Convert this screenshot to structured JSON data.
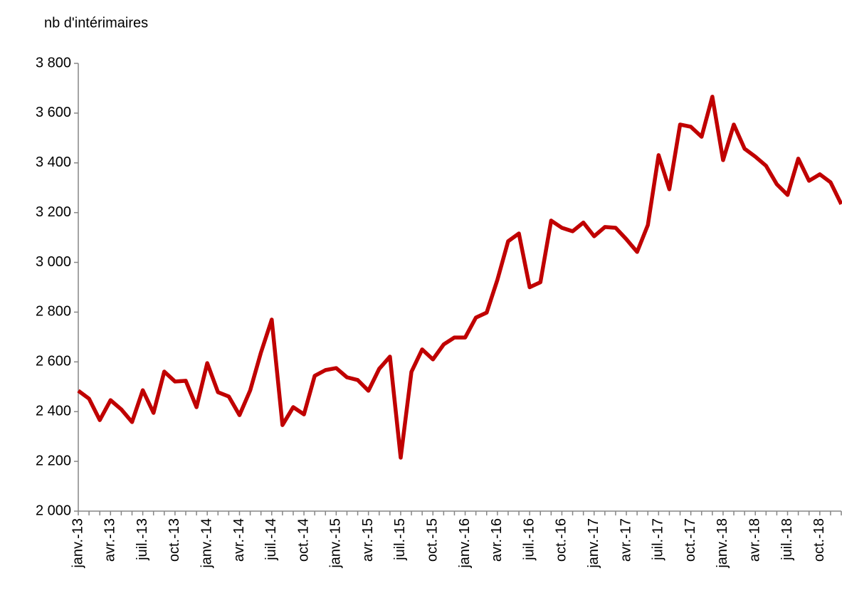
{
  "chart_data": {
    "type": "line",
    "y_label": "nb d'intérimaires",
    "categories": [
      "janv.-13",
      null,
      null,
      "avr.-13",
      null,
      null,
      "juil.-13",
      null,
      null,
      "oct.-13",
      null,
      null,
      "janv.-14",
      null,
      null,
      "avr.-14",
      null,
      null,
      "juil.-14",
      null,
      null,
      "oct.-14",
      null,
      null,
      "janv.-15",
      null,
      null,
      "avr.-15",
      null,
      null,
      "juil.-15",
      null,
      null,
      "oct.-15",
      null,
      null,
      "janv.-16",
      null,
      null,
      "avr.-16",
      null,
      null,
      "juil.-16",
      null,
      null,
      "oct.-16",
      null,
      null,
      "janv.-17",
      null,
      null,
      "avr.-17",
      null,
      null,
      "juil.-17",
      null,
      null,
      "oct.-17",
      null,
      null,
      "janv.-18",
      null,
      null,
      "avr.-18",
      null,
      null,
      "juil.-18",
      null,
      null,
      "oct.-18",
      null,
      null
    ],
    "series": [
      {
        "name": "nb d'intérimaires",
        "color": "#c00000",
        "values": [
          2484,
          2452,
          2366,
          2446,
          2409,
          2358,
          2486,
          2395,
          2561,
          2521,
          2524,
          2418,
          2595,
          2478,
          2461,
          2386,
          2486,
          2638,
          2770,
          2346,
          2418,
          2389,
          2544,
          2567,
          2575,
          2538,
          2527,
          2484,
          2572,
          2621,
          2215,
          2560,
          2650,
          2610,
          2670,
          2698,
          2698,
          2778,
          2798,
          2930,
          3085,
          3116,
          2900,
          2920,
          3168,
          3139,
          3125,
          3160,
          3105,
          3142,
          3139,
          3093,
          3042,
          3150,
          3431,
          3294,
          3554,
          3545,
          3505,
          3666,
          3411,
          3554,
          3457,
          3425,
          3388,
          3314,
          3271,
          3417,
          3328,
          3354,
          3322,
          3234
        ]
      }
    ],
    "ylim": [
      2000,
      3800
    ],
    "yticks": [
      {
        "value": 2000,
        "label": "2 000"
      },
      {
        "value": 2200,
        "label": "2 200"
      },
      {
        "value": 2400,
        "label": "2 400"
      },
      {
        "value": 2600,
        "label": "2 600"
      },
      {
        "value": 2800,
        "label": "2 800"
      },
      {
        "value": 3000,
        "label": "3 000"
      },
      {
        "value": 3200,
        "label": "3 200"
      },
      {
        "value": 3400,
        "label": "3 400"
      },
      {
        "value": 3600,
        "label": "3 600"
      },
      {
        "value": 3800,
        "label": "3 800"
      }
    ],
    "grid": false
  }
}
